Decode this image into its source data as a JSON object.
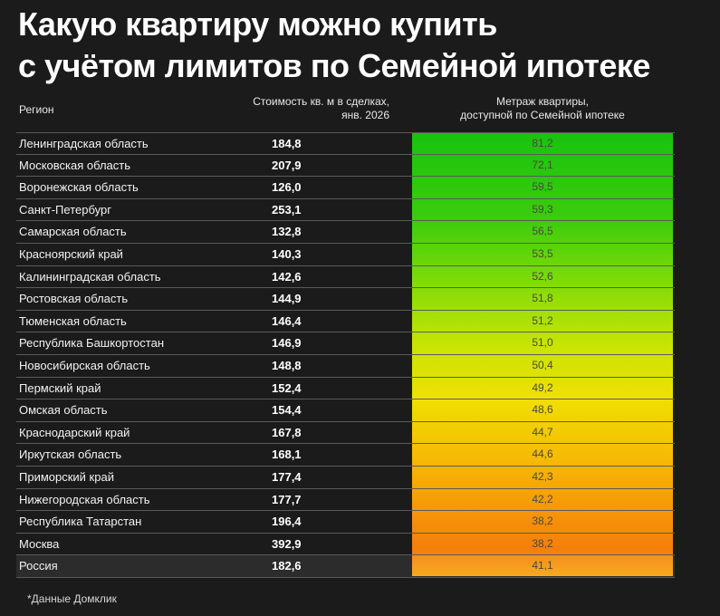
{
  "title_line1": "Какую квартиру можно купить",
  "title_line2": "с учётом лимитов по Семейной ипотеке",
  "headers": {
    "region": "Регион",
    "price_line1": "Стоимость кв. м в сделках,",
    "price_line2": "янв. 2026",
    "area_line1": "Метраж квартиры,",
    "area_line2": "доступной по Семейной ипотеке"
  },
  "colors": {
    "background": "#1b1b1b",
    "gradient_top": "#19c20e",
    "gradient_mid": "#efe002",
    "gradient_bottom": "#f67e0c"
  },
  "chart_data": {
    "type": "table",
    "columns": [
      "Регион",
      "Стоимость кв. м в сделках, янв. 2026",
      "Метраж квартиры, доступной по Семейной ипотеке"
    ],
    "rows": [
      {
        "region": "Ленинградская область",
        "price": "184,8",
        "area": "81,2"
      },
      {
        "region": "Московская область",
        "price": "207,9",
        "area": "72,1"
      },
      {
        "region": "Воронежская область",
        "price": "126,0",
        "area": "59,5"
      },
      {
        "region": "Санкт-Петербург",
        "price": "253,1",
        "area": "59,3"
      },
      {
        "region": "Самарская область",
        "price": "132,8",
        "area": "56,5"
      },
      {
        "region": "Красноярский край",
        "price": "140,3",
        "area": "53,5"
      },
      {
        "region": "Калининградская область",
        "price": "142,6",
        "area": "52,6"
      },
      {
        "region": "Ростовская область",
        "price": "144,9",
        "area": "51,8"
      },
      {
        "region": "Тюменская область",
        "price": "146,4",
        "area": "51,2"
      },
      {
        "region": "Республика Башкортостан",
        "price": "146,9",
        "area": "51,0"
      },
      {
        "region": "Новосибирская область",
        "price": "148,8",
        "area": "50,4"
      },
      {
        "region": "Пермский край",
        "price": "152,4",
        "area": "49,2"
      },
      {
        "region": "Омская область",
        "price": "154,4",
        "area": "48,6"
      },
      {
        "region": "Краснодарский край",
        "price": "167,8",
        "area": "44,7"
      },
      {
        "region": "Иркутская область",
        "price": "168,1",
        "area": "44,6"
      },
      {
        "region": "Приморский край",
        "price": "177,4",
        "area": "42,3"
      },
      {
        "region": "Нижегородская область",
        "price": "177,7",
        "area": "42,2"
      },
      {
        "region": "Республика Татарстан",
        "price": "196,4",
        "area": "38,2"
      },
      {
        "region": "Москва",
        "price": "392,9",
        "area": "38,2"
      },
      {
        "region": "Россия",
        "price": "182,6",
        "area": "41,1",
        "total": true
      }
    ]
  },
  "footnote": "*Данные Домклик"
}
